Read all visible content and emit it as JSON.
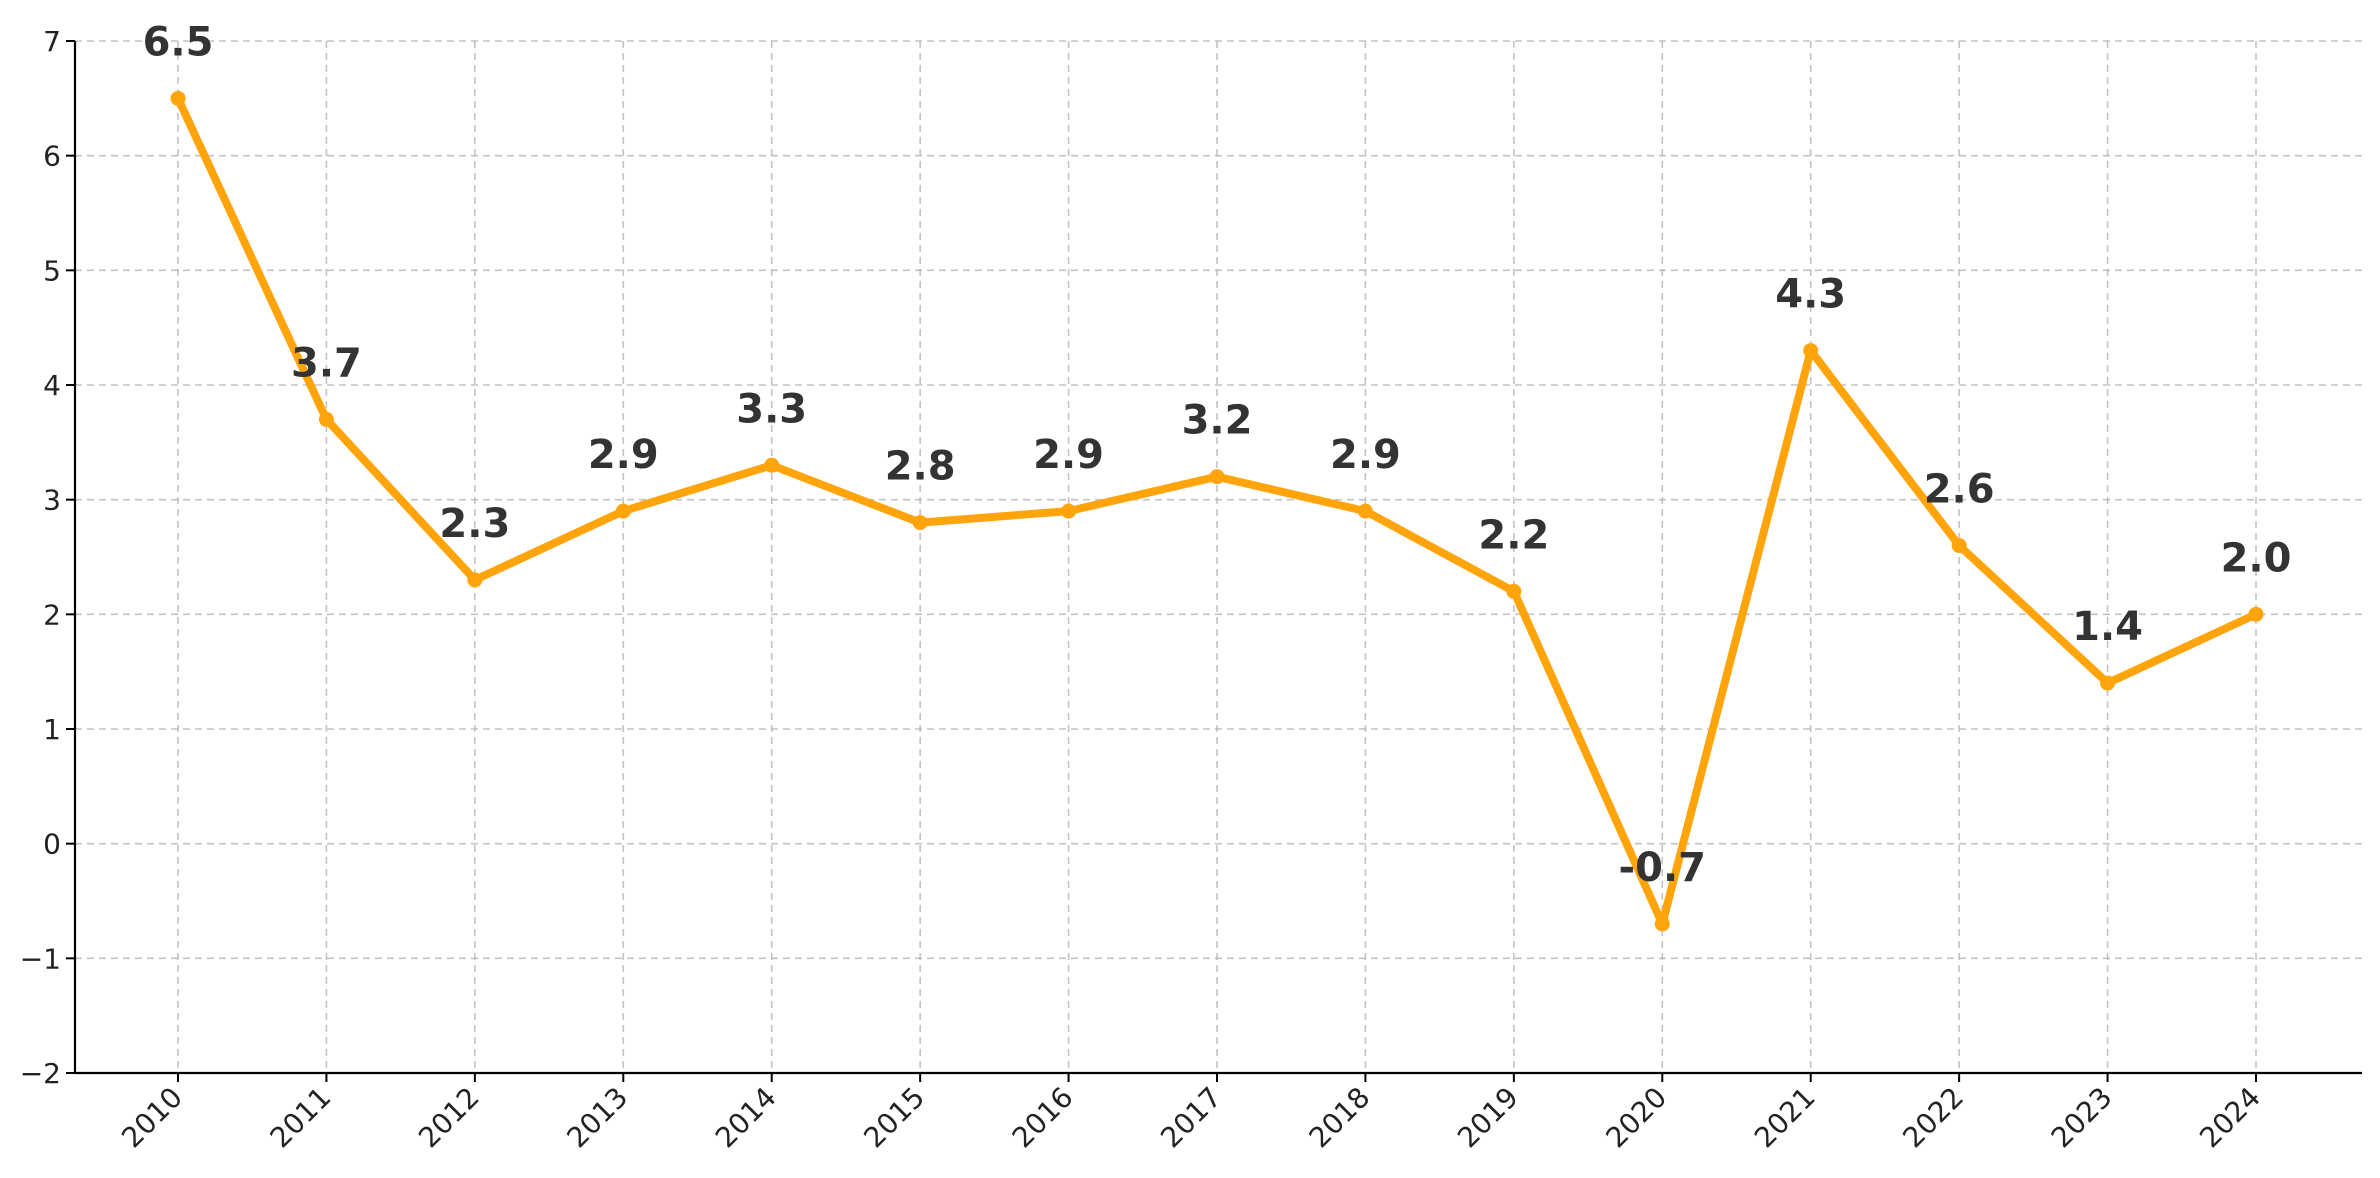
{
  "chart_data": {
    "type": "line",
    "title": "",
    "xlabel": "",
    "ylabel": "",
    "categories": [
      "2010",
      "2011",
      "2012",
      "2013",
      "2014",
      "2015",
      "2016",
      "2017",
      "2018",
      "2019",
      "2020",
      "2021",
      "2022",
      "2023",
      "2024"
    ],
    "series": [
      {
        "name": "",
        "values": [
          6.5,
          3.7,
          2.3,
          2.9,
          3.3,
          2.8,
          2.9,
          3.2,
          2.9,
          2.2,
          -0.7,
          4.3,
          2.6,
          1.4,
          2.0
        ],
        "color": "#FFA40A"
      }
    ],
    "data_labels": [
      "6.5",
      "3.7",
      "2.3",
      "2.9",
      "3.3",
      "2.8",
      "2.9",
      "3.2",
      "2.9",
      "2.2",
      "-0.7",
      "4.3",
      "2.6",
      "1.4",
      "2.0"
    ],
    "ylim": [
      -2,
      7
    ],
    "yticks": [
      -2,
      -1,
      0,
      1,
      2,
      3,
      4,
      5,
      6,
      7
    ],
    "ytick_labels": [
      "−2",
      "−1",
      "0",
      "1",
      "2",
      "3",
      "4",
      "5",
      "6",
      "7"
    ],
    "grid": true,
    "legend": "none"
  }
}
